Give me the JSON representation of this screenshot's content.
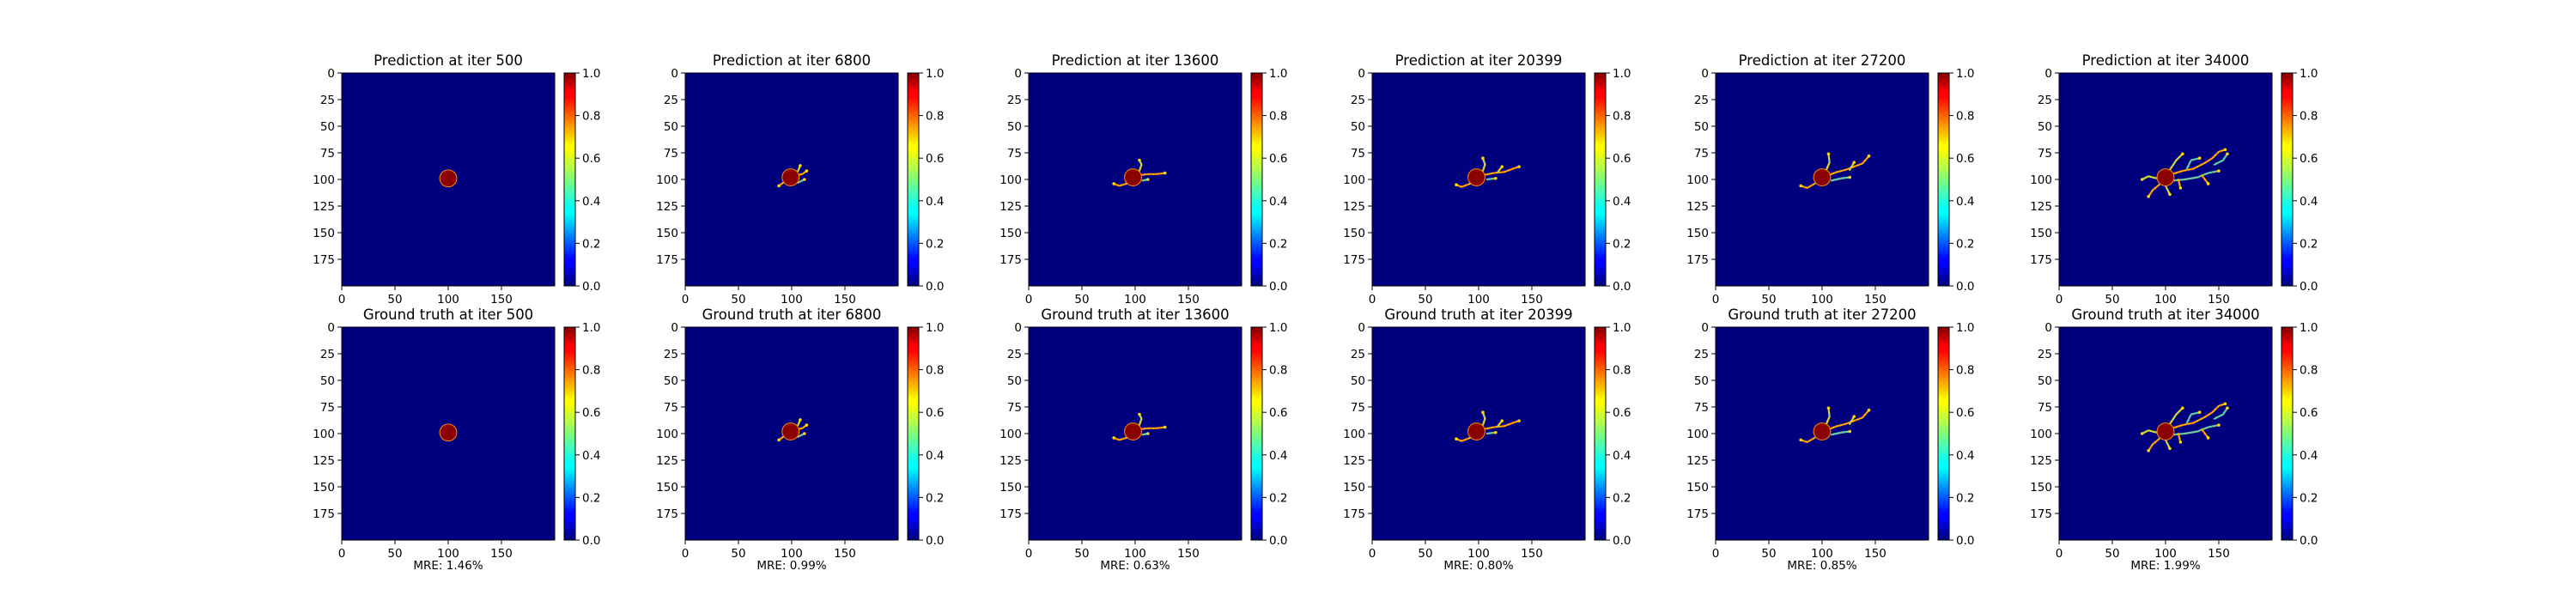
{
  "chart_data": {
    "type": "heatmap",
    "grid_rows": 2,
    "colormap": "jet",
    "colors": {
      "field_background": "#00007f",
      "tip_orange": "#ff8c00",
      "tip_yellow": "#ffd700",
      "tip_cyan": "#40e0d0",
      "disc": "#8b0000"
    },
    "x_ticks": [
      "0",
      "50",
      "100",
      "150"
    ],
    "y_ticks": [
      "0",
      "25",
      "50",
      "75",
      "100",
      "125",
      "150",
      "175"
    ],
    "colorbar_ticks": [
      "0.0",
      "0.2",
      "0.4",
      "0.6",
      "0.8",
      "1.0"
    ],
    "xlim": [
      0,
      200
    ],
    "ylim": [
      200,
      0
    ],
    "colorbar_range": [
      0,
      1
    ],
    "panels": [
      {
        "iter": "500",
        "prediction_title": "Prediction at iter 500",
        "truth_title": "Ground truth at iter 500",
        "mre": "MRE: 1.46%",
        "nucleus": {
          "cx": 100,
          "cy": 99,
          "r": 8
        },
        "branches": []
      },
      {
        "iter": "6800",
        "prediction_title": "Prediction at iter 6800",
        "truth_title": "Ground truth at iter 6800",
        "mre": "MRE: 0.99%",
        "nucleus": {
          "cx": 99,
          "cy": 98,
          "r": 8
        },
        "branches": [
          [
            [
              104,
              96
            ],
            [
              110,
              95
            ],
            [
              114,
              92
            ]
          ],
          [
            [
              106,
              92
            ],
            [
              108,
              87
            ]
          ],
          [
            [
              106,
              103
            ],
            [
              112,
              100
            ]
          ],
          [
            [
              92,
              103
            ],
            [
              88,
              106
            ]
          ]
        ]
      },
      {
        "iter": "13600",
        "prediction_title": "Prediction at iter 13600",
        "truth_title": "Ground truth at iter 13600",
        "mre": "MRE: 0.63%",
        "nucleus": {
          "cx": 98,
          "cy": 98,
          "r": 8
        },
        "branches": [
          [
            [
              104,
              96
            ],
            [
              112,
              95
            ],
            [
              120,
              95
            ],
            [
              128,
              94
            ]
          ],
          [
            [
              104,
              92
            ],
            [
              106,
              86
            ],
            [
              104,
              82
            ]
          ],
          [
            [
              107,
              101
            ],
            [
              112,
              100
            ]
          ],
          [
            [
              92,
              104
            ],
            [
              85,
              106
            ],
            [
              80,
              104
            ]
          ]
        ]
      },
      {
        "iter": "20399",
        "prediction_title": "Prediction at iter 20399",
        "truth_title": "Ground truth at iter 20399",
        "mre": "MRE: 0.80%",
        "nucleus": {
          "cx": 98,
          "cy": 98,
          "r": 8
        },
        "branches": [
          [
            [
              104,
              96
            ],
            [
              114,
              94
            ],
            [
              124,
              93
            ],
            [
              132,
              90
            ],
            [
              138,
              88
            ]
          ],
          [
            [
              104,
              92
            ],
            [
              106,
              86
            ],
            [
              104,
              80
            ]
          ],
          [
            [
              108,
              100
            ],
            [
              116,
              99
            ]
          ],
          [
            [
              92,
              104
            ],
            [
              84,
              107
            ],
            [
              79,
              105
            ]
          ],
          [
            [
              118,
              93
            ],
            [
              122,
              88
            ]
          ]
        ]
      },
      {
        "iter": "27200",
        "prediction_title": "Prediction at iter 27200",
        "truth_title": "Ground truth at iter 27200",
        "mre": "MRE: 0.85%",
        "nucleus": {
          "cx": 100,
          "cy": 98,
          "r": 8
        },
        "branches": [
          [
            [
              106,
              96
            ],
            [
              114,
              93
            ],
            [
              122,
              91
            ],
            [
              130,
              88
            ],
            [
              138,
              85
            ],
            [
              144,
              78
            ]
          ],
          [
            [
              104,
              91
            ],
            [
              107,
              84
            ],
            [
              106,
              76
            ]
          ],
          [
            [
              109,
              101
            ],
            [
              118,
              99
            ],
            [
              126,
              98
            ]
          ],
          [
            [
              93,
              104
            ],
            [
              86,
              108
            ],
            [
              80,
              106
            ]
          ],
          [
            [
              126,
              91
            ],
            [
              130,
              84
            ]
          ]
        ]
      },
      {
        "iter": "34000",
        "prediction_title": "Prediction at iter 34000",
        "truth_title": "Ground truth at iter 34000",
        "mre": "MRE: 1.99%",
        "nucleus": {
          "cx": 100,
          "cy": 98,
          "r": 8
        },
        "branches": [
          [
            [
              106,
              95
            ],
            [
              116,
              92
            ],
            [
              126,
              90
            ],
            [
              136,
              85
            ],
            [
              144,
              80
            ],
            [
              150,
              74
            ],
            [
              156,
              72
            ]
          ],
          [
            [
              104,
              91
            ],
            [
              110,
              82
            ],
            [
              116,
              76
            ]
          ],
          [
            [
              108,
              101
            ],
            [
              118,
              100
            ],
            [
              130,
              98
            ],
            [
              140,
              94
            ],
            [
              150,
              92
            ]
          ],
          [
            [
              94,
              105
            ],
            [
              88,
              110
            ],
            [
              84,
              116
            ]
          ],
          [
            [
              92,
              99
            ],
            [
              84,
              97
            ],
            [
              78,
              100
            ]
          ],
          [
            [
              120,
              90
            ],
            [
              124,
              82
            ],
            [
              132,
              80
            ]
          ],
          [
            [
              134,
              96
            ],
            [
              140,
              104
            ]
          ],
          [
            [
              100,
              106
            ],
            [
              104,
              114
            ]
          ],
          [
            [
              146,
              86
            ],
            [
              154,
              82
            ],
            [
              158,
              76
            ]
          ],
          [
            [
              112,
              100
            ],
            [
              114,
              108
            ]
          ]
        ]
      }
    ]
  }
}
